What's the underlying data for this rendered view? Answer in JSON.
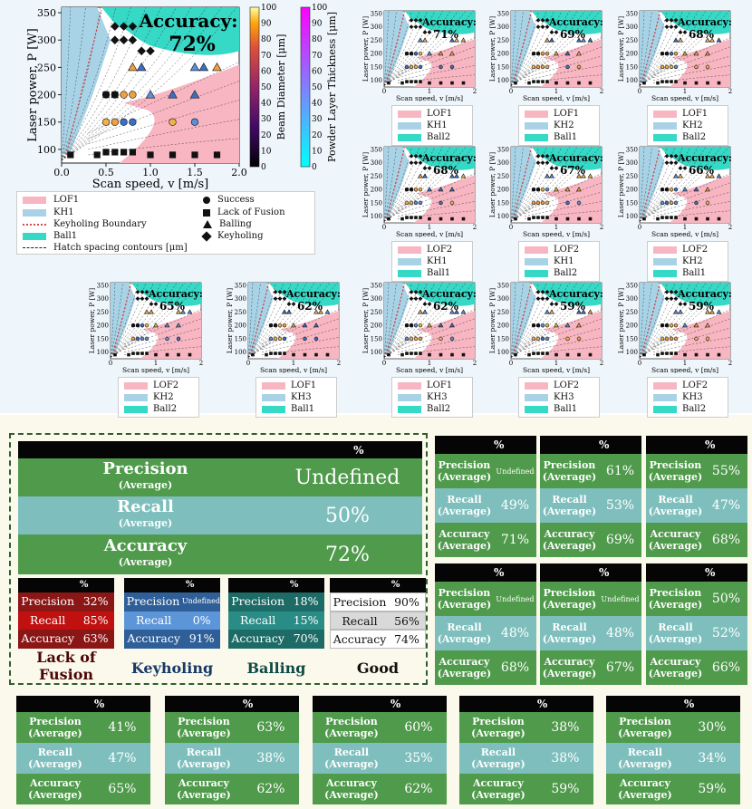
{
  "main_plot": {
    "accuracy_label": "Accuracy:",
    "accuracy_value": "72%",
    "xlabel": "Scan speed, v [m/s]",
    "ylabel": "Laser power, P [W]",
    "xticks": [
      "0.0",
      "0.5",
      "1.0",
      "1.5",
      "2.0"
    ],
    "yticks": [
      "100",
      "150",
      "200",
      "250",
      "300",
      "350"
    ],
    "colorbar1_label": "Beam Diameter [μm]",
    "colorbar2_label": "Powder Layer Thickness [μm]",
    "colorbar_ticks": [
      "0",
      "10",
      "20",
      "30",
      "40",
      "50",
      "60",
      "70",
      "80",
      "90",
      "100"
    ]
  },
  "main_legend": {
    "lof": "LOF1",
    "kh": "KH1",
    "boundary": "Keyholing Boundary",
    "ball": "Ball1",
    "hatch": "Hatch spacing contours [μm]",
    "success": "Success",
    "lack": "Lack of Fusion",
    "balling": "Balling",
    "keyholing": "Keyholing"
  },
  "small_axis": {
    "xlabel": "Scan speed, v [m/s]",
    "ylabel": "Laser power, P [W]",
    "xticks": [
      "0",
      "1",
      "2"
    ],
    "yticks": [
      "100",
      "150",
      "200",
      "250",
      "300",
      "350"
    ]
  },
  "small_plots": [
    {
      "acc": "71%",
      "legend": [
        "LOF1",
        "KH1",
        "Ball2"
      ]
    },
    {
      "acc": "69%",
      "legend": [
        "LOF1",
        "KH2",
        "Ball1"
      ]
    },
    {
      "acc": "68%",
      "legend": [
        "LOF1",
        "KH2",
        "Ball2"
      ]
    },
    {
      "acc": "68%",
      "legend": [
        "LOF2",
        "KH1",
        "Ball1"
      ]
    },
    {
      "acc": "67%",
      "legend": [
        "LOF2",
        "KH1",
        "Ball2"
      ]
    },
    {
      "acc": "66%",
      "legend": [
        "LOF2",
        "KH2",
        "Ball1"
      ]
    },
    {
      "acc": "65%",
      "legend": [
        "LOF2",
        "KH2",
        "Ball2"
      ]
    },
    {
      "acc": "62%",
      "legend": [
        "LOF1",
        "KH3",
        "Ball1"
      ]
    },
    {
      "acc": "62%",
      "legend": [
        "LOF1",
        "KH3",
        "Ball2"
      ]
    },
    {
      "acc": "59%",
      "legend": [
        "LOF2",
        "KH3",
        "Ball1"
      ]
    },
    {
      "acc": "59%",
      "legend": [
        "LOF2",
        "KH3",
        "Ball2"
      ]
    }
  ],
  "big_table": {
    "header": "%",
    "precision_label": "Precision",
    "recall_label": "Recall",
    "accuracy_label": "Accuracy",
    "avg": "(Average)",
    "precision": "Undefined",
    "recall": "50%",
    "accuracy": "72%"
  },
  "class_tables": [
    {
      "name": "Lack of Fusion",
      "name1": "Lack of",
      "name2": "Fusion",
      "precision": "32%",
      "recall": "85%",
      "accuracy": "63%",
      "color": "#8b0f0f"
    },
    {
      "name": "Keyholing",
      "name1": "Keyholing",
      "name2": "",
      "precision": "Undefined",
      "recall": "0%",
      "accuracy": "91%",
      "color": "#3f6fa8"
    },
    {
      "name": "Balling",
      "name1": "Balling",
      "name2": "",
      "precision": "18%",
      "recall": "15%",
      "accuracy": "70%",
      "color": "#1a6e6a"
    },
    {
      "name": "Good",
      "name1": "Good",
      "name2": "",
      "precision": "90%",
      "recall": "56%",
      "accuracy": "74%",
      "color": "#ffffff"
    }
  ],
  "class_row_labels": {
    "precision": "Precision",
    "recall": "Recall",
    "accuracy": "Accuracy",
    "header": "%"
  },
  "small_tables": [
    {
      "p": "Undefined",
      "r": "49%",
      "a": "71%"
    },
    {
      "p": "61%",
      "r": "53%",
      "a": "69%"
    },
    {
      "p": "55%",
      "r": "47%",
      "a": "68%"
    },
    {
      "p": "Undefined",
      "r": "48%",
      "a": "68%"
    },
    {
      "p": "Undefined",
      "r": "48%",
      "a": "67%"
    },
    {
      "p": "50%",
      "r": "52%",
      "a": "66%"
    },
    {
      "p": "41%",
      "r": "47%",
      "a": "65%"
    },
    {
      "p": "63%",
      "r": "38%",
      "a": "62%"
    },
    {
      "p": "60%",
      "r": "35%",
      "a": "62%"
    },
    {
      "p": "38%",
      "r": "38%",
      "a": "59%"
    },
    {
      "p": "30%",
      "r": "34%",
      "a": "59%"
    }
  ],
  "chart_data": {
    "type": "scatter",
    "xlabel": "Scan speed, v [m/s]",
    "ylabel": "Laser power, P [W]",
    "xlim": [
      0,
      2
    ],
    "ylim": [
      75,
      360
    ],
    "series": [
      {
        "name": "Success",
        "points": [
          [
            0.5,
            150
          ],
          [
            0.6,
            150
          ],
          [
            0.7,
            150
          ],
          [
            0.8,
            150
          ],
          [
            0.5,
            200
          ],
          [
            0.6,
            200
          ],
          [
            0.7,
            200
          ],
          [
            0.8,
            200
          ],
          [
            1.25,
            150
          ],
          [
            1.5,
            150
          ]
        ]
      },
      {
        "name": "Lack of Fusion",
        "points": [
          [
            0.1,
            90
          ],
          [
            0.4,
            90
          ],
          [
            0.5,
            95
          ],
          [
            0.6,
            95
          ],
          [
            0.7,
            95
          ],
          [
            0.8,
            95
          ],
          [
            1.0,
            90
          ],
          [
            1.25,
            90
          ],
          [
            1.5,
            90
          ],
          [
            1.75,
            90
          ],
          [
            0.5,
            200
          ],
          [
            0.6,
            200
          ]
        ]
      },
      {
        "name": "Balling",
        "points": [
          [
            1.0,
            200
          ],
          [
            1.25,
            200
          ],
          [
            1.5,
            200
          ],
          [
            1.5,
            250
          ],
          [
            1.6,
            250
          ],
          [
            1.75,
            250
          ],
          [
            0.8,
            250
          ],
          [
            0.9,
            250
          ]
        ]
      },
      {
        "name": "Keyholing",
        "points": [
          [
            0.6,
            325
          ],
          [
            0.7,
            325
          ],
          [
            0.8,
            325
          ],
          [
            0.6,
            300
          ],
          [
            0.7,
            300
          ],
          [
            0.8,
            300
          ],
          [
            0.9,
            280
          ],
          [
            1.0,
            280
          ]
        ]
      }
    ],
    "accuracy": "72%"
  }
}
